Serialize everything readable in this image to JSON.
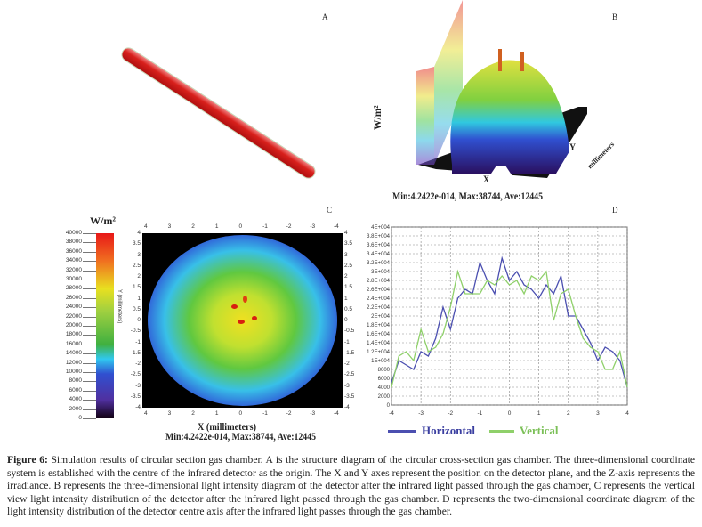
{
  "panels": {
    "a": "A",
    "b": "B",
    "c": "C",
    "d": "D"
  },
  "panel_b": {
    "z_label": "W/m²",
    "x_label": "X",
    "y_label": "Y",
    "unit_label": "millimeters",
    "stats": "Min:4.2422e-014, Max:38744, Ave:12445"
  },
  "panel_c": {
    "colorbar_title": "W/m²",
    "colorbar_ticks": [
      "40000",
      "38000",
      "36000",
      "34000",
      "32000",
      "30000",
      "28000",
      "26000",
      "24000",
      "22000",
      "20000",
      "18000",
      "16000",
      "14000",
      "12000",
      "10000",
      "8000",
      "6000",
      "4000",
      "2000",
      "0"
    ],
    "x_ticks": [
      "4",
      "3",
      "2",
      "1",
      "0",
      "-1",
      "-2",
      "-3",
      "-4"
    ],
    "y_ticks": [
      "4",
      "3.5",
      "3",
      "2.5",
      "2",
      "1.5",
      "1",
      "0.5",
      "0",
      "-0.5",
      "-1",
      "-1.5",
      "-2",
      "-2.5",
      "-3",
      "-3.5",
      "-4"
    ],
    "y_label": "Y (millimeters)",
    "x_label": "X (millimeters)",
    "stats": "Min:4.2422e-014, Max:38744, Ave:12445"
  },
  "chart_data": {
    "type": "line",
    "x": [
      -4,
      -3.75,
      -3.5,
      -3.25,
      -3,
      -2.75,
      -2.5,
      -2.25,
      -2,
      -1.75,
      -1.5,
      -1.25,
      -1,
      -0.75,
      -0.5,
      -0.25,
      0,
      0.25,
      0.5,
      0.75,
      1,
      1.25,
      1.5,
      1.75,
      2,
      2.25,
      2.5,
      2.75,
      3,
      3.25,
      3.5,
      3.75,
      4
    ],
    "series": [
      {
        "name": "Horizontal",
        "color": "#4b4fb0",
        "values": [
          5000,
          10000,
          9000,
          8000,
          12000,
          11000,
          15000,
          22000,
          17000,
          24000,
          26000,
          25000,
          32000,
          28000,
          25000,
          33000,
          28000,
          30000,
          27000,
          26000,
          24000,
          27000,
          25000,
          29000,
          20000,
          20000,
          17000,
          14000,
          10000,
          13000,
          12000,
          10000,
          4000
        ]
      },
      {
        "name": "Vertical",
        "color": "#8fd06a",
        "values": [
          4000,
          11000,
          12000,
          10000,
          17000,
          12000,
          13000,
          16000,
          22000,
          30000,
          25000,
          25000,
          25000,
          28000,
          27000,
          29000,
          27000,
          28000,
          25000,
          29000,
          28000,
          30000,
          19000,
          25000,
          26000,
          20000,
          15000,
          13000,
          12000,
          8000,
          8000,
          12000,
          4000
        ]
      }
    ],
    "x_ticks": [
      "-4",
      "-3",
      "-2",
      "-1",
      "0",
      "1",
      "2",
      "3",
      "4"
    ],
    "y_ticks": [
      "0",
      "2000",
      "4000",
      "6000",
      "8000",
      "1E+004",
      "1.2E+004",
      "1.4E+004",
      "1.6E+004",
      "1.8E+004",
      "2E+004",
      "2.2E+004",
      "2.4E+004",
      "2.6E+004",
      "2.8E+004",
      "3E+004",
      "3.2E+004",
      "3.4E+004",
      "3.6E+004",
      "3.8E+004",
      "4E+004"
    ],
    "xlim": [
      -4,
      4
    ],
    "ylim": [
      0,
      40000
    ],
    "grid": true,
    "legend": "bottom"
  },
  "caption": {
    "label": "Figure 6:",
    "text": " Simulation results of circular section gas chamber. A is the structure diagram of the circular cross-section gas chamber. The three-dimensional coordinate system is established with the centre of the infrared detector as the origin. The X and Y axes represent the position on the detector plane, and the Z-axis represents the irradiance. B represents the three-dimensional light intensity diagram of the detector after the infrared light passed through the gas chamber, C represents the vertical view light intensity distribution of the detector after the infrared light passed through the gas chamber. D represents the two-dimensional coordinate diagram of the light intensity distribution of the detector centre axis after the infrared light passes through the gas chamber."
  }
}
